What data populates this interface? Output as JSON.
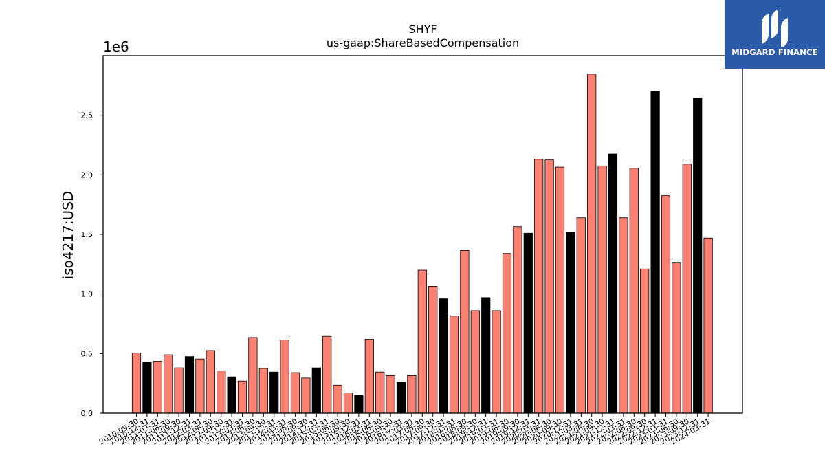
{
  "chart_data": {
    "type": "bar",
    "title": "SHYF",
    "subtitle": "us-gaap:ShareBasedCompensation",
    "ylabel": "iso4217:USD",
    "xlabel": "",
    "y_multiplier": "1e6",
    "ylim": [
      0,
      3.0
    ],
    "yticks": [
      "0.0",
      "0.5",
      "1.0",
      "1.5",
      "2.0",
      "2.5"
    ],
    "grid": false,
    "colors": {
      "normal": "#fa8072",
      "highlight": "#000000",
      "edge": "#000000"
    },
    "categories": [
      "2010-09-30",
      "2010-12-31",
      "2011-03-31",
      "2011-06-30",
      "2011-09-30",
      "2011-12-31",
      "2012-03-31",
      "2012-06-30",
      "2012-09-30",
      "2012-12-31",
      "2013-03-31",
      "2013-06-30",
      "2013-09-30",
      "2013-12-31",
      "2014-03-31",
      "2014-06-30",
      "2014-09-30",
      "2014-12-31",
      "2015-03-31",
      "2015-06-30",
      "2015-09-30",
      "2015-12-31",
      "2016-03-31",
      "2016-06-30",
      "2016-09-30",
      "2016-12-31",
      "2017-03-31",
      "2017-06-30",
      "2017-09-30",
      "2017-12-31",
      "2018-03-31",
      "2018-06-30",
      "2018-09-30",
      "2018-12-31",
      "2019-03-31",
      "2019-06-30",
      "2019-09-30",
      "2019-12-31",
      "2020-03-31",
      "2020-06-30",
      "2020-09-30",
      "2020-12-31",
      "2021-03-31",
      "2021-06-30",
      "2021-09-30",
      "2021-12-31",
      "2022-03-31",
      "2022-06-30",
      "2022-09-30",
      "2022-12-31",
      "2023-03-31",
      "2023-06-30",
      "2023-09-30",
      "2023-12-31",
      "2024-03-31"
    ],
    "values": [
      0.505,
      0.425,
      0.435,
      0.49,
      0.38,
      0.475,
      0.455,
      0.525,
      0.355,
      0.305,
      0.27,
      0.635,
      0.375,
      0.345,
      0.615,
      0.34,
      0.295,
      0.38,
      0.645,
      0.235,
      0.17,
      0.15,
      0.62,
      0.345,
      0.315,
      0.26,
      0.315,
      1.2,
      1.065,
      0.96,
      0.815,
      1.365,
      0.86,
      0.97,
      0.86,
      1.34,
      1.565,
      1.51,
      2.13,
      2.125,
      2.065,
      1.52,
      1.64,
      2.845,
      2.075,
      2.175,
      1.64,
      2.055,
      1.21,
      2.7,
      1.825,
      1.265,
      2.09,
      2.645,
      1.47
    ],
    "highlight": [
      false,
      true,
      false,
      false,
      false,
      true,
      false,
      false,
      false,
      true,
      false,
      false,
      false,
      true,
      false,
      false,
      false,
      true,
      false,
      false,
      false,
      true,
      false,
      false,
      false,
      true,
      false,
      false,
      false,
      true,
      false,
      false,
      false,
      true,
      false,
      false,
      false,
      true,
      false,
      false,
      false,
      true,
      false,
      false,
      false,
      true,
      false,
      false,
      false,
      true,
      false,
      false,
      false,
      true,
      false
    ]
  },
  "logo": {
    "text": "MIDGARD FINANCE",
    "color": "#2b5aa8"
  }
}
